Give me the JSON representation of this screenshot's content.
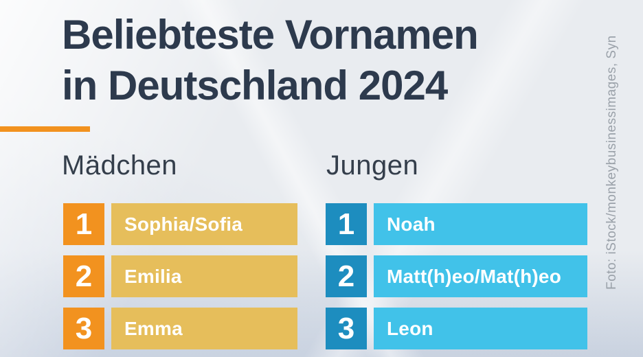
{
  "title": {
    "line1": "Beliebteste Vornamen",
    "line2": "in Deutschland 2024"
  },
  "photo_credit": "Foto: iStock/monkeybusinessimages, Syn",
  "colors": {
    "title": "#2d3a4d",
    "header-text": "#343e4b",
    "accent-orange": "#f2921f",
    "girls-badge": "#f2921f",
    "girls-bar": "#e6be5b",
    "boys-badge": "#1d8dbf",
    "boys-bar": "#41c2e9",
    "credit-text": "#9aa1a9"
  },
  "chart_data": {
    "type": "table",
    "title": "Beliebteste Vornamen in Deutschland 2024",
    "legend_position": "none",
    "groups": [
      {
        "name": "Mädchen",
        "ranking": [
          {
            "rank": "1",
            "name": "Sophia/Sofia"
          },
          {
            "rank": "2",
            "name": "Emilia"
          },
          {
            "rank": "3",
            "name": "Emma"
          }
        ]
      },
      {
        "name": "Jungen",
        "ranking": [
          {
            "rank": "1",
            "name": "Noah"
          },
          {
            "rank": "2",
            "name": "Matt(h)eo/Mat(h)eo"
          },
          {
            "rank": "3",
            "name": "Leon"
          }
        ]
      }
    ]
  }
}
